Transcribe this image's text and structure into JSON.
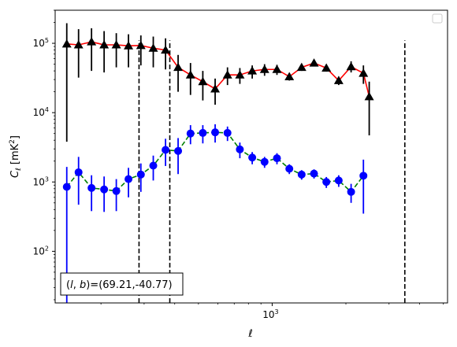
{
  "chart_data": {
    "type": "line",
    "x_scale": "log",
    "y_scale": "log",
    "xlim": [
      130,
      5200
    ],
    "ylim": [
      18,
      300000
    ],
    "xlabel": "ℓ",
    "ylabel_main": "C",
    "ylabel_sub": "ℓ",
    "ylabel_unit_pre": "  [mK",
    "ylabel_unit_sup": "2",
    "ylabel_unit_post": "]",
    "x_tick_labels": [
      {
        "value": 1000,
        "base": "10",
        "exp": "3"
      }
    ],
    "y_tick_labels": [
      {
        "value": 100,
        "base": "10",
        "exp": "2"
      },
      {
        "value": 1000,
        "base": "10",
        "exp": "3"
      },
      {
        "value": 10000,
        "base": "10",
        "exp": "4"
      },
      {
        "value": 100000,
        "base": "10",
        "exp": "5"
      }
    ],
    "annotation": {
      "pre": "(",
      "l": "l",
      "comma": ", ",
      "b": "b",
      "post": ")=(69.21,-40.77)"
    },
    "legend": {
      "location": "top-right",
      "entries": []
    },
    "vlines": [
      286,
      382,
      3480
    ],
    "series": [
      {
        "marker": "triangle",
        "line_color": "#ff0000",
        "line_style": "solid",
        "marker_color": "#000000",
        "error_color": "#000000",
        "points": [
          {
            "x": 145,
            "y": 98000,
            "lo": 3800,
            "hi": 195000
          },
          {
            "x": 162,
            "y": 95000,
            "lo": 32000,
            "hi": 160000
          },
          {
            "x": 183,
            "y": 105000,
            "lo": 40000,
            "hi": 165000
          },
          {
            "x": 206,
            "y": 95000,
            "lo": 38000,
            "hi": 150000
          },
          {
            "x": 231,
            "y": 95000,
            "lo": 45000,
            "hi": 140000
          },
          {
            "x": 259,
            "y": 92000,
            "lo": 45000,
            "hi": 135000
          },
          {
            "x": 291,
            "y": 93000,
            "lo": 48000,
            "hi": 130000
          },
          {
            "x": 327,
            "y": 85000,
            "lo": 45000,
            "hi": 125000
          },
          {
            "x": 367,
            "y": 80000,
            "lo": 42000,
            "hi": 118000
          },
          {
            "x": 413,
            "y": 45000,
            "lo": 20000,
            "hi": 68000
          },
          {
            "x": 464,
            "y": 35000,
            "lo": 18000,
            "hi": 52000
          },
          {
            "x": 521,
            "y": 28000,
            "lo": 15000,
            "hi": 40000
          },
          {
            "x": 585,
            "y": 22000,
            "lo": 13000,
            "hi": 31000
          },
          {
            "x": 657,
            "y": 35000,
            "lo": 25000,
            "hi": 45000
          },
          {
            "x": 738,
            "y": 35000,
            "lo": 26000,
            "hi": 44000
          },
          {
            "x": 829,
            "y": 40000,
            "lo": 31000,
            "hi": 48000
          },
          {
            "x": 931,
            "y": 42000,
            "lo": 34000,
            "hi": 50000
          },
          {
            "x": 1046,
            "y": 42000,
            "lo": 35000,
            "hi": 49000
          },
          {
            "x": 1175,
            "y": 33000,
            "lo": 29000,
            "hi": 37000
          },
          {
            "x": 1319,
            "y": 45000,
            "lo": 40000,
            "hi": 50000
          },
          {
            "x": 1482,
            "y": 52000,
            "lo": 47000,
            "hi": 57000
          },
          {
            "x": 1664,
            "y": 44000,
            "lo": 39000,
            "hi": 49000
          },
          {
            "x": 1869,
            "y": 29000,
            "lo": 25000,
            "hi": 33000
          },
          {
            "x": 2100,
            "y": 46000,
            "lo": 38000,
            "hi": 55000
          },
          {
            "x": 2358,
            "y": 37000,
            "lo": 26000,
            "hi": 48000
          },
          {
            "x": 2490,
            "y": 17000,
            "lo": 4700,
            "hi": 28000
          }
        ]
      },
      {
        "marker": "circle",
        "line_color": "#008000",
        "line_style": "dashed",
        "marker_color": "#0000ff",
        "error_color": "#0000ff",
        "points": [
          {
            "x": 145,
            "y": 850,
            "lo": 18,
            "hi": 1650
          },
          {
            "x": 162,
            "y": 1380,
            "lo": 470,
            "hi": 2300
          },
          {
            "x": 183,
            "y": 820,
            "lo": 380,
            "hi": 1250
          },
          {
            "x": 206,
            "y": 780,
            "lo": 370,
            "hi": 1200
          },
          {
            "x": 231,
            "y": 740,
            "lo": 380,
            "hi": 1100
          },
          {
            "x": 259,
            "y": 1100,
            "lo": 600,
            "hi": 1600
          },
          {
            "x": 291,
            "y": 1280,
            "lo": 720,
            "hi": 1850
          },
          {
            "x": 327,
            "y": 1720,
            "lo": 1050,
            "hi": 2400
          },
          {
            "x": 367,
            "y": 2900,
            "lo": 1700,
            "hi": 4200
          },
          {
            "x": 413,
            "y": 2800,
            "lo": 1300,
            "hi": 4300
          },
          {
            "x": 464,
            "y": 5000,
            "lo": 3500,
            "hi": 6600
          },
          {
            "x": 521,
            "y": 5100,
            "lo": 3600,
            "hi": 6600
          },
          {
            "x": 585,
            "y": 5200,
            "lo": 3700,
            "hi": 6800
          },
          {
            "x": 657,
            "y": 5100,
            "lo": 3900,
            "hi": 6300
          },
          {
            "x": 738,
            "y": 2950,
            "lo": 2200,
            "hi": 3700
          },
          {
            "x": 829,
            "y": 2250,
            "lo": 1800,
            "hi": 2700
          },
          {
            "x": 931,
            "y": 1950,
            "lo": 1600,
            "hi": 2300
          },
          {
            "x": 1046,
            "y": 2200,
            "lo": 1800,
            "hi": 2600
          },
          {
            "x": 1175,
            "y": 1550,
            "lo": 1300,
            "hi": 1800
          },
          {
            "x": 1319,
            "y": 1280,
            "lo": 1080,
            "hi": 1480
          },
          {
            "x": 1482,
            "y": 1320,
            "lo": 1120,
            "hi": 1520
          },
          {
            "x": 1664,
            "y": 1000,
            "lo": 820,
            "hi": 1180
          },
          {
            "x": 1869,
            "y": 1050,
            "lo": 850,
            "hi": 1250
          },
          {
            "x": 2100,
            "y": 720,
            "lo": 500,
            "hi": 940
          },
          {
            "x": 2358,
            "y": 1230,
            "lo": 350,
            "hi": 2100
          }
        ]
      }
    ]
  }
}
